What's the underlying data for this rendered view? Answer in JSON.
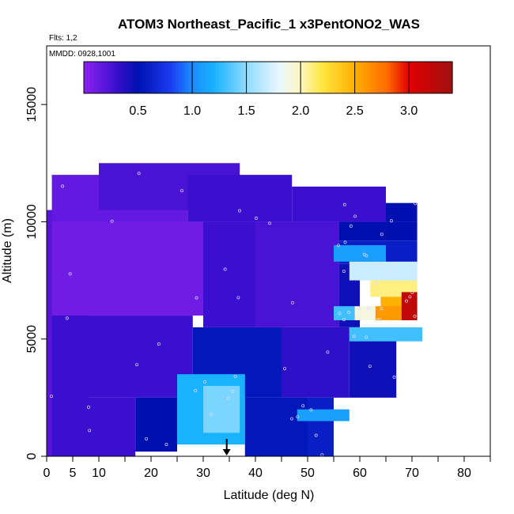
{
  "chart_data": {
    "type": "heatmap",
    "title": "ATOM3 Northeast_Pacific_1 x3PentONO2_WAS",
    "flights_note": "Flts: 1,2",
    "dates_note": "MMDD: 0928,1001",
    "xlabel": "Latitude (deg N)",
    "ylabel": "Altitude (m)",
    "xlim": [
      0,
      85
    ],
    "ylim": [
      0,
      17500
    ],
    "x_ticks": [
      0,
      5,
      10,
      20,
      30,
      40,
      50,
      60,
      70,
      80
    ],
    "x_minor_ticks": [
      15,
      25,
      35,
      45,
      55,
      65,
      75,
      85
    ],
    "y_ticks": [
      0,
      5000,
      10000,
      15000
    ],
    "colorbar": {
      "range": [
        0,
        3.4
      ],
      "ticks": [
        0.5,
        1.0,
        1.5,
        2.0,
        2.5,
        3.0
      ],
      "tick_labels": [
        "0.5",
        "1.0",
        "1.5",
        "2.0",
        "2.5",
        "3.0"
      ],
      "dividers": [
        1.0,
        1.5,
        2.0,
        2.5,
        3.0
      ],
      "colors": [
        {
          "v": 0.0,
          "c": "#8c22f0"
        },
        {
          "v": 0.3,
          "c": "#3b0fcf"
        },
        {
          "v": 0.5,
          "c": "#0010b0"
        },
        {
          "v": 0.8,
          "c": "#1a3cf0"
        },
        {
          "v": 1.0,
          "c": "#1c8cff"
        },
        {
          "v": 1.2,
          "c": "#18b2ff"
        },
        {
          "v": 1.5,
          "c": "#8fdcff"
        },
        {
          "v": 1.8,
          "c": "#e8f6ff"
        },
        {
          "v": 2.0,
          "c": "#fff6c0"
        },
        {
          "v": 2.2,
          "c": "#ffe640"
        },
        {
          "v": 2.5,
          "c": "#ffb000"
        },
        {
          "v": 2.8,
          "c": "#ff6a00"
        },
        {
          "v": 3.0,
          "c": "#e00000"
        },
        {
          "v": 3.4,
          "c": "#a01010"
        }
      ]
    },
    "marker": {
      "x": 34.5,
      "y": 0
    },
    "regions": [
      {
        "lat": [
          0,
          8
        ],
        "alt": [
          0,
          10500
        ],
        "value": 0.2
      },
      {
        "lat": [
          1,
          27
        ],
        "alt": [
          8000,
          12000
        ],
        "value": 0.15
      },
      {
        "lat": [
          10,
          37
        ],
        "alt": [
          10500,
          12500
        ],
        "value": 0.25
      },
      {
        "lat": [
          27,
          47
        ],
        "alt": [
          10000,
          12000
        ],
        "value": 0.3
      },
      {
        "lat": [
          47,
          65
        ],
        "alt": [
          10000,
          11500
        ],
        "value": 0.3
      },
      {
        "lat": [
          65,
          71
        ],
        "alt": [
          10000,
          10800
        ],
        "value": 0.5
      },
      {
        "lat": [
          1,
          30
        ],
        "alt": [
          6000,
          10000
        ],
        "value": 0.1
      },
      {
        "lat": [
          30,
          40
        ],
        "alt": [
          5500,
          10000
        ],
        "value": 0.3
      },
      {
        "lat": [
          40,
          56
        ],
        "alt": [
          5500,
          10000
        ],
        "value": 0.25
      },
      {
        "lat": [
          56,
          71
        ],
        "alt": [
          9200,
          10000
        ],
        "value": 0.5
      },
      {
        "lat": [
          56,
          71
        ],
        "alt": [
          8200,
          9200
        ],
        "value": 0.6
      },
      {
        "lat": [
          56,
          60
        ],
        "alt": [
          5500,
          8200
        ],
        "value": 0.45
      },
      {
        "lat": [
          1,
          28
        ],
        "alt": [
          2500,
          6000
        ],
        "value": 0.3
      },
      {
        "lat": [
          28,
          45
        ],
        "alt": [
          2500,
          5500
        ],
        "value": 0.55
      },
      {
        "lat": [
          45,
          58
        ],
        "alt": [
          2500,
          5500
        ],
        "value": 0.35
      },
      {
        "lat": [
          58,
          67
        ],
        "alt": [
          2500,
          5200
        ],
        "value": 0.45
      },
      {
        "lat": [
          1,
          17
        ],
        "alt": [
          0,
          2500
        ],
        "value": 0.3
      },
      {
        "lat": [
          17,
          25
        ],
        "alt": [
          200,
          2500
        ],
        "value": 0.5
      },
      {
        "lat": [
          25,
          38
        ],
        "alt": [
          500,
          3500
        ],
        "value": 1.2
      },
      {
        "lat": [
          38,
          50
        ],
        "alt": [
          0,
          2500
        ],
        "value": 0.55
      },
      {
        "lat": [
          50,
          55
        ],
        "alt": [
          0,
          2500
        ],
        "value": 0.6
      },
      {
        "lat": [
          30,
          37
        ],
        "alt": [
          1000,
          3000
        ],
        "value": 1.45
      },
      {
        "lat": [
          48,
          58
        ],
        "alt": [
          1500,
          2000
        ],
        "value": 1.1
      },
      {
        "lat": [
          55,
          65
        ],
        "alt": [
          8300,
          9000
        ],
        "value": 1.1
      },
      {
        "lat": [
          58,
          71
        ],
        "alt": [
          7500,
          8300
        ],
        "value": 1.7
      },
      {
        "lat": [
          62,
          71
        ],
        "alt": [
          6800,
          7500
        ],
        "value": 2.1
      },
      {
        "lat": [
          64,
          71
        ],
        "alt": [
          6200,
          6800
        ],
        "value": 2.5
      },
      {
        "lat": [
          59,
          63
        ],
        "alt": [
          5800,
          6400
        ],
        "value": 1.9
      },
      {
        "lat": [
          63,
          68
        ],
        "alt": [
          5800,
          6400
        ],
        "value": 2.6
      },
      {
        "lat": [
          68,
          71
        ],
        "alt": [
          5800,
          7000
        ],
        "value": 3.2
      },
      {
        "lat": [
          55,
          59
        ],
        "alt": [
          5800,
          6400
        ],
        "value": 1.3
      },
      {
        "lat": [
          58,
          72
        ],
        "alt": [
          4900,
          5500
        ],
        "value": 1.3
      }
    ]
  }
}
